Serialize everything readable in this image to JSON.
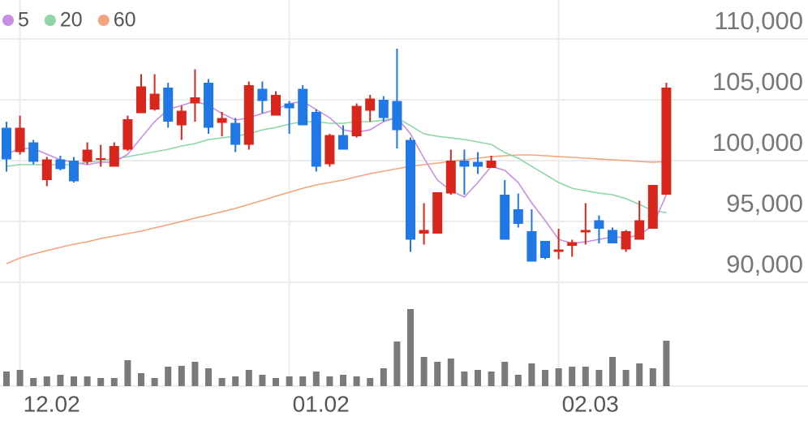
{
  "chart_data": {
    "type": "candlestick",
    "categories": [
      null,
      "12.02",
      null,
      null,
      null,
      null,
      null,
      null,
      null,
      null,
      null,
      null,
      null,
      null,
      null,
      null,
      null,
      null,
      null,
      null,
      null,
      "01.02",
      null,
      null,
      null,
      null,
      null,
      null,
      null,
      null,
      null,
      null,
      null,
      null,
      null,
      null,
      null,
      null,
      null,
      null,
      null,
      "02.03",
      null,
      null,
      null,
      null,
      null,
      null,
      null,
      null
    ],
    "open": [
      102700,
      100700,
      101500,
      98400,
      100100,
      100000,
      99900,
      100100,
      99500,
      100900,
      103900,
      104200,
      106000,
      102900,
      104700,
      106400,
      103100,
      103100,
      101300,
      105900,
      103700,
      104700,
      105900,
      104000,
      99700,
      102100,
      102000,
      104100,
      105000,
      104900,
      101700,
      94000,
      94000,
      97300,
      100000,
      99900,
      99400,
      97200,
      96000,
      94200,
      93400,
      92500,
      93000,
      94100,
      95100,
      94300,
      92700,
      93500,
      94400,
      97200
    ],
    "high": [
      103200,
      103700,
      101700,
      100300,
      100400,
      100300,
      101500,
      101300,
      101500,
      103700,
      107100,
      107100,
      106400,
      104500,
      107500,
      106700,
      104000,
      103500,
      106500,
      106500,
      105700,
      104900,
      106200,
      104200,
      102200,
      102900,
      104700,
      105400,
      105300,
      109200,
      101900,
      96500,
      97400,
      100900,
      100900,
      100700,
      100400,
      98400,
      97300,
      96000,
      93400,
      94400,
      93500,
      96500,
      95500,
      94500,
      94300,
      96700,
      98000,
      106400
    ],
    "low": [
      99100,
      100500,
      99700,
      97900,
      99200,
      98200,
      99700,
      99500,
      99500,
      100800,
      103900,
      104100,
      102700,
      101700,
      103200,
      102200,
      102000,
      100700,
      100900,
      103900,
      103700,
      102200,
      102900,
      99100,
      99500,
      100900,
      101900,
      103200,
      103200,
      101000,
      92500,
      93100,
      94000,
      97200,
      97200,
      98900,
      99400,
      93500,
      94500,
      91700,
      91900,
      91900,
      92100,
      93100,
      93200,
      93200,
      92500,
      93500,
      94400,
      97200
    ],
    "close": [
      100100,
      102700,
      99900,
      100100,
      99300,
      98300,
      100900,
      100200,
      101200,
      103400,
      106100,
      105500,
      103200,
      104100,
      105200,
      102700,
      103500,
      101300,
      106200,
      104900,
      105400,
      104300,
      102900,
      99500,
      102100,
      100900,
      104500,
      105100,
      103500,
      102500,
      93500,
      94300,
      97400,
      100000,
      99500,
      99500,
      100000,
      93500,
      94800,
      91700,
      92000,
      92700,
      93300,
      94300,
      94400,
      93200,
      94200,
      95100,
      98000,
      106000
    ],
    "volume": [
      18,
      20,
      10,
      12,
      14,
      12,
      12,
      10,
      10,
      32,
      16,
      10,
      24,
      25,
      30,
      22,
      10,
      12,
      20,
      14,
      10,
      12,
      12,
      18,
      12,
      14,
      12,
      10,
      22,
      55,
      95,
      36,
      30,
      34,
      18,
      20,
      18,
      30,
      14,
      28,
      20,
      22,
      24,
      24,
      20,
      36,
      20,
      28,
      22,
      56
    ],
    "up_color": "#d9261c",
    "down_color": "#1f78e5",
    "volume_color": "#7a7a7a",
    "series": [
      {
        "name": "5",
        "color": "#c88ee3",
        "values": [
          100530,
          101000,
          101000,
          100530,
          100070,
          99870,
          99670,
          99870,
          99870,
          100530,
          101870,
          103200,
          104200,
          104530,
          104870,
          104530,
          103870,
          103330,
          103530,
          103870,
          104200,
          104670,
          104870,
          104200,
          103530,
          102530,
          102330,
          102530,
          103200,
          103530,
          102200,
          100200,
          98400,
          97530,
          97000,
          98200,
          99530,
          99200,
          98200,
          96530,
          95070,
          93530,
          93200,
          93330,
          93530,
          93730,
          93670,
          93870,
          94670,
          97200
        ]
      },
      {
        "name": "20",
        "color": "#8dd6a5",
        "values": [
          99530,
          99670,
          99670,
          99670,
          99670,
          99670,
          99870,
          100000,
          100130,
          100330,
          100530,
          100730,
          100930,
          101200,
          101400,
          101730,
          101870,
          102000,
          102200,
          102530,
          102730,
          103000,
          103200,
          103200,
          103070,
          103070,
          103200,
          103200,
          103330,
          103530,
          102870,
          102200,
          102000,
          101870,
          101730,
          101530,
          101330,
          100670,
          100200,
          99530,
          98870,
          98200,
          97730,
          97530,
          97330,
          97200,
          96870,
          96400,
          95870,
          95730
        ]
      },
      {
        "name": "60",
        "color": "#f3a47e",
        "values": [
          91530,
          92000,
          92330,
          92600,
          92870,
          93130,
          93330,
          93600,
          93800,
          94000,
          94200,
          94470,
          94730,
          95000,
          95270,
          95530,
          95800,
          96070,
          96400,
          96730,
          97070,
          97400,
          97730,
          98000,
          98200,
          98400,
          98670,
          98930,
          99130,
          99330,
          99530,
          99670,
          99800,
          99930,
          100070,
          100200,
          100330,
          100400,
          100470,
          100470,
          100400,
          100330,
          100270,
          100200,
          100130,
          100070,
          100000,
          99930,
          99870,
          99930
        ]
      }
    ],
    "ylim": [
      90000,
      110000
    ],
    "yticks": [
      {
        "value": 90000,
        "label": "90,000"
      },
      {
        "value": 95000,
        "label": "95,000"
      },
      {
        "value": 100000,
        "label": "100,000"
      },
      {
        "value": 105000,
        "label": "105,000"
      },
      {
        "value": 110000,
        "label": "110,000"
      }
    ],
    "volume_ylim": [
      0,
      100
    ],
    "grid": true
  }
}
